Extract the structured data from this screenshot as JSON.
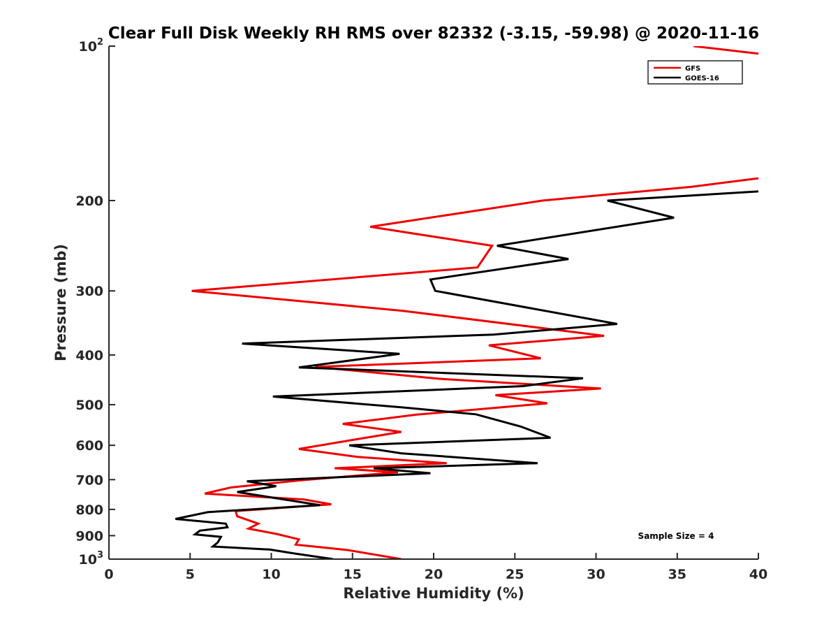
{
  "chart_data": {
    "type": "line",
    "title": "Clear Full Disk Weekly RH RMS over 82332 (-3.15, -59.98) @ 2020-11-16",
    "xlabel": "Relative Humidity (%)",
    "ylabel": "Pressure (mb)",
    "xlim": [
      0,
      40
    ],
    "ylim": [
      100,
      1000
    ],
    "y_scale": "log",
    "y_reversed": true,
    "x_ticks": [
      "0",
      "5",
      "10",
      "15",
      "20",
      "25",
      "30",
      "35",
      "40"
    ],
    "y_ticks": [
      {
        "value": 100,
        "base": "10",
        "exp": "2"
      },
      {
        "value": 200,
        "label": "200"
      },
      {
        "value": 300,
        "label": "300"
      },
      {
        "value": 400,
        "label": "400"
      },
      {
        "value": 500,
        "label": "500"
      },
      {
        "value": 600,
        "label": "600"
      },
      {
        "value": 700,
        "label": "700"
      },
      {
        "value": 800,
        "label": "800"
      },
      {
        "value": 900,
        "label": "900"
      },
      {
        "value": 1000,
        "base": "10",
        "exp": "3"
      }
    ],
    "legend_position": "top-right",
    "annotation": "Sample Size = 4",
    "series": [
      {
        "name": "GFS",
        "color": "#ee0000",
        "points": [
          [
            36,
            100
          ],
          [
            40,
            103.4
          ],
          null,
          [
            40,
            181
          ],
          [
            35.9,
            188
          ],
          [
            26.7,
            200
          ],
          [
            16.1,
            225
          ],
          [
            23.6,
            245
          ],
          [
            22.7,
            270
          ],
          [
            5.1,
            300
          ],
          [
            18.1,
            328
          ],
          [
            30.5,
            367
          ],
          [
            23.4,
            383
          ],
          [
            26.6,
            406
          ],
          [
            12.7,
            422
          ],
          [
            20.3,
            445
          ],
          [
            30.3,
            465
          ],
          [
            23.8,
            479
          ],
          [
            27,
            497
          ],
          [
            18.9,
            523
          ],
          [
            14.4,
            545
          ],
          [
            18,
            565
          ],
          [
            15.1,
            585
          ],
          [
            11.7,
            610
          ],
          [
            15.3,
            632
          ],
          [
            20.8,
            650
          ],
          [
            13.9,
            665
          ],
          [
            17.8,
            677
          ],
          [
            11.8,
            702
          ],
          [
            7.5,
            725
          ],
          [
            5.9,
            745
          ],
          [
            12,
            765
          ],
          [
            13.7,
            782
          ],
          [
            7.8,
            806
          ],
          [
            7.9,
            825
          ],
          [
            9.2,
            853
          ],
          [
            8.6,
            872
          ],
          [
            10.3,
            893
          ],
          [
            11.7,
            915
          ],
          [
            11.5,
            937
          ],
          [
            14.7,
            960
          ],
          [
            18,
            1000
          ]
        ]
      },
      {
        "name": "GOES-16",
        "color": "#000000",
        "points": [
          [
            40,
            192
          ],
          [
            30.7,
            200
          ],
          [
            34.8,
            216
          ],
          [
            23.9,
            245
          ],
          [
            28.3,
            260
          ],
          [
            19.8,
            285
          ],
          [
            20.1,
            300
          ],
          [
            31.3,
            348
          ],
          [
            23.7,
            365
          ],
          [
            8.2,
            380
          ],
          [
            17.9,
            398
          ],
          [
            11.7,
            423
          ],
          [
            29.2,
            444
          ],
          [
            25.5,
            460
          ],
          [
            10.1,
            482
          ],
          [
            18,
            506
          ],
          [
            22.6,
            522
          ],
          [
            25.4,
            552
          ],
          [
            27.2,
            580
          ],
          [
            14.8,
            600
          ],
          [
            18,
            622
          ],
          [
            26.4,
            650
          ],
          [
            16.3,
            665
          ],
          [
            19.8,
            680
          ],
          [
            8.5,
            705
          ],
          [
            10.3,
            721
          ],
          [
            7.9,
            740
          ],
          [
            13,
            785
          ],
          [
            6.1,
            810
          ],
          [
            4.1,
            835
          ],
          [
            7.2,
            853
          ],
          [
            7.3,
            867
          ],
          [
            5.6,
            880
          ],
          [
            5.3,
            895
          ],
          [
            6.9,
            905
          ],
          [
            6.7,
            928
          ],
          [
            6.4,
            945
          ],
          [
            9.9,
            958
          ],
          [
            11.4,
            975
          ],
          [
            13.8,
            1000
          ]
        ]
      }
    ]
  }
}
